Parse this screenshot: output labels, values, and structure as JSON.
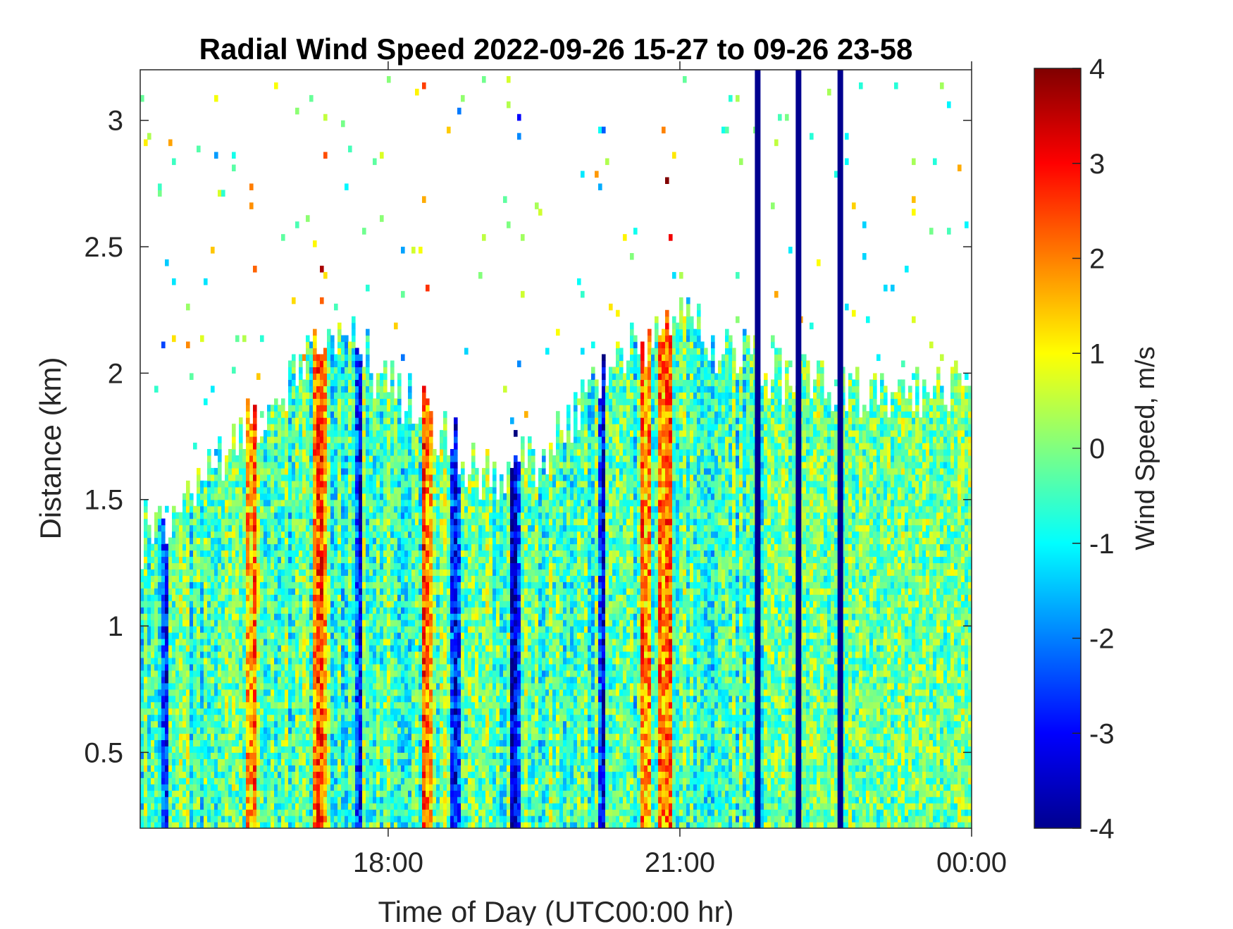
{
  "chart_data": {
    "type": "heatmap",
    "title": "Radial Wind Speed 2022-09-26 15-27 to 09-26 23-58",
    "xlabel": "Time of Day (UTC00:00 hr)",
    "ylabel": "Distance (km)",
    "colorbar_label": "Wind Speed, m/s",
    "colormap": "jet",
    "x_range_hours": [
      15.45,
      24.0
    ],
    "y_range_km": [
      0.2,
      3.2
    ],
    "clim": [
      -4,
      4
    ],
    "x_ticks": [
      {
        "value": 18,
        "label": "18:00"
      },
      {
        "value": 21,
        "label": "21:00"
      },
      {
        "value": 24,
        "label": "00:00"
      }
    ],
    "y_ticks": [
      {
        "value": 0.5,
        "label": "0.5"
      },
      {
        "value": 1.0,
        "label": "1"
      },
      {
        "value": 1.5,
        "label": "1.5"
      },
      {
        "value": 2.0,
        "label": "2"
      },
      {
        "value": 2.5,
        "label": "2.5"
      },
      {
        "value": 3.0,
        "label": "3"
      }
    ],
    "colorbar_ticks": [
      {
        "value": 4,
        "label": "4"
      },
      {
        "value": 3,
        "label": "3"
      },
      {
        "value": 2,
        "label": "2"
      },
      {
        "value": 1,
        "label": "1"
      },
      {
        "value": 0,
        "label": "0"
      },
      {
        "value": -1,
        "label": "-1"
      },
      {
        "value": -2,
        "label": "-2"
      },
      {
        "value": -3,
        "label": "-3"
      },
      {
        "value": -4,
        "label": "-4"
      }
    ],
    "data_top_km_profile": [
      {
        "time_h": 15.45,
        "top_km": 1.35
      },
      {
        "time_h": 15.75,
        "top_km": 1.45
      },
      {
        "time_h": 16.0,
        "top_km": 1.55
      },
      {
        "time_h": 16.5,
        "top_km": 1.75
      },
      {
        "time_h": 17.0,
        "top_km": 2.0
      },
      {
        "time_h": 17.5,
        "top_km": 2.2
      },
      {
        "time_h": 18.0,
        "top_km": 1.95
      },
      {
        "time_h": 18.5,
        "top_km": 1.8
      },
      {
        "time_h": 19.0,
        "top_km": 1.6
      },
      {
        "time_h": 19.5,
        "top_km": 1.65
      },
      {
        "time_h": 20.0,
        "top_km": 1.9
      },
      {
        "time_h": 20.5,
        "top_km": 2.1
      },
      {
        "time_h": 21.0,
        "top_km": 2.2
      },
      {
        "time_h": 21.5,
        "top_km": 2.1
      },
      {
        "time_h": 22.0,
        "top_km": 2.0
      },
      {
        "time_h": 22.5,
        "top_km": 1.95
      },
      {
        "time_h": 23.0,
        "top_km": 1.9
      },
      {
        "time_h": 23.5,
        "top_km": 1.95
      },
      {
        "time_h": 24.0,
        "top_km": 1.95
      }
    ],
    "strong_positive_bands_h": [
      16.6,
      17.3,
      18.4,
      20.65,
      20.85
    ],
    "strong_negative_bands_h": [
      15.7,
      17.7,
      18.7,
      19.3,
      20.2
    ],
    "missing_data_lines_h": [
      21.8,
      22.22,
      22.65
    ]
  }
}
